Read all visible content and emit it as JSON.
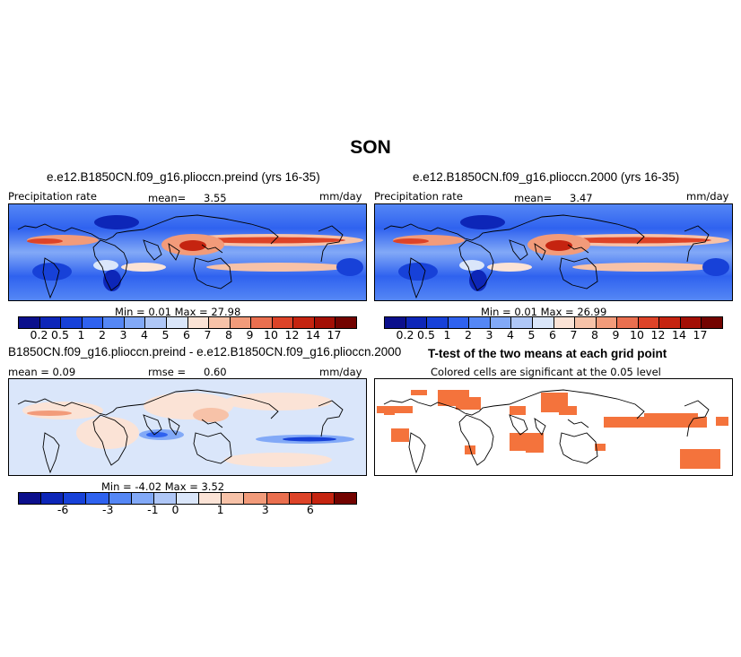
{
  "season": "SON",
  "colors": {
    "ocean_low": "#1a3fd6",
    "land_outline": "#000000",
    "itcz": "#e24a2b",
    "diff_neutral": "#dde8ff",
    "signif": "#f4733c"
  },
  "panels": [
    {
      "title": "e.e12.B1850CN.f09_g16.plioccn.preind (yrs 16-35)",
      "left_label": "Precipitation rate",
      "mean_label": "mean=",
      "mean_value": "3.55",
      "units": "mm/day",
      "minmax": "Min =    0.01  Max =   27.98"
    },
    {
      "title": "e.e12.B1850CN.f09_g16.plioccn.2000 (yrs 16-35)",
      "left_label": "Precipitation rate",
      "mean_label": "mean=",
      "mean_value": "3.47",
      "units": "mm/day",
      "minmax": "Min =    0.01  Max =   26.99"
    },
    {
      "title": "B1850CN.f09_g16.plioccn.preind - e.e12.B1850CN.f09_g16.plioccn.2000",
      "left_label": "mean =   0.09",
      "mean_label": "rmse =",
      "mean_value": "0.60",
      "units": "mm/day",
      "minmax": "Min =   -4.02  Max =    3.52"
    },
    {
      "title": "T-test of the two means at each grid point",
      "subtitle": "Colored cells are significant at the 0.05 level"
    }
  ],
  "precip_colorbar": {
    "colors": [
      "#0b0f8c",
      "#0d26b8",
      "#1741d8",
      "#2f62ef",
      "#5587f5",
      "#82a9f7",
      "#afc7f7",
      "#dae6fa",
      "#fbe3d6",
      "#f7c2a8",
      "#f29b7a",
      "#ea6f4f",
      "#dd4328",
      "#c52410",
      "#a30f05",
      "#730300"
    ],
    "labels": [
      "0.2",
      "0.5",
      "1",
      "2",
      "3",
      "4",
      "5",
      "6",
      "7",
      "8",
      "9",
      "10",
      "12",
      "14",
      "17"
    ]
  },
  "diff_colorbar": {
    "colors": [
      "#0b0f8c",
      "#0d26b8",
      "#1741d8",
      "#2f62ef",
      "#5587f5",
      "#82a9f7",
      "#afc7f7",
      "#dae6fa",
      "#fbe3d6",
      "#f7c2a8",
      "#f29b7a",
      "#ea6f4f",
      "#dd4328",
      "#c52410",
      "#730300"
    ],
    "labels": [
      "-6",
      "-3",
      "-1",
      "0",
      "1",
      "3",
      "6"
    ]
  }
}
